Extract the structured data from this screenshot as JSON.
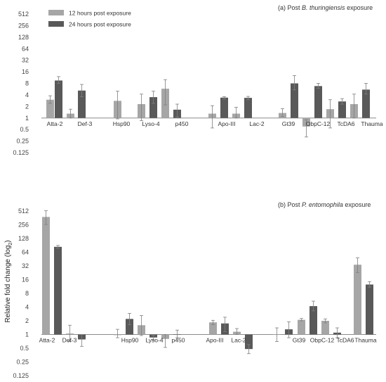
{
  "colors": {
    "series_12h": "#a6a6a6",
    "series_24h": "#595959",
    "axis": "#8c8c8c",
    "errorbar": "#7f7f7f"
  },
  "ylabel": {
    "main": "Relative fold change (log",
    "sub": "2",
    "close": ")"
  },
  "legend": {
    "series_12h": "12 hours post exposure",
    "series_24h": "24 hours post exposure"
  },
  "chart_data": [
    {
      "type": "bar",
      "panel": "top",
      "title": {
        "prefix": "(a) Post ",
        "italic": "B. thuringiensis",
        "suffix": " exposure"
      },
      "yscale": "log2",
      "ylim": [
        0.125,
        512
      ],
      "ytick_labels": [
        "0.125",
        "0.25",
        "0.5",
        "1",
        "2",
        "4",
        "8",
        "16",
        "32",
        "64",
        "128",
        "256",
        "512"
      ],
      "ylabel": "",
      "xlabel": "",
      "categories": [
        "Atta-2",
        "Def-3",
        "Hsp90",
        "Lyso-4",
        "p450",
        "Apo-III",
        "Lac-2",
        "Gt39",
        "ObpC-12",
        "TcDA6",
        "Thauma"
      ],
      "series": [
        {
          "name": "12 hours post exposure",
          "values": [
            3.0,
            1.3,
            2.8,
            2.3,
            5.8,
            1.3,
            1.3,
            1.35,
            0.6,
            1.7,
            2.3
          ],
          "err_low": [
            2.4,
            1.0,
            0.95,
            0.85,
            2.2,
            0.55,
            1.0,
            1.1,
            0.32,
            0.55,
            1.0
          ],
          "err_high": [
            3.8,
            1.7,
            5.0,
            4.2,
            10.0,
            2.1,
            1.9,
            1.75,
            0.9,
            3.0,
            4.2
          ]
        },
        {
          "name": "24 hours post exposure",
          "values": [
            9.5,
            5.2,
            null,
            3.5,
            1.65,
            3.4,
            3.35,
            8.0,
            6.8,
            2.7,
            5.5
          ],
          "err_low": [
            8.0,
            3.6,
            null,
            2.4,
            1.05,
            3.1,
            3.0,
            5.4,
            6.0,
            2.3,
            4.2
          ],
          "err_high": [
            12.0,
            7.5,
            null,
            5.0,
            2.3,
            3.6,
            3.65,
            12.8,
            8.0,
            3.2,
            8.0
          ]
        }
      ],
      "legend_position": "top-left",
      "grid": false
    },
    {
      "type": "bar",
      "panel": "bottom",
      "title": {
        "prefix": "(b) Post ",
        "italic": "P. entomophila",
        "suffix": " exposure"
      },
      "yscale": "log2",
      "ylim": [
        0.125,
        512
      ],
      "ytick_labels": [
        "0.125",
        "0.25",
        "0.5",
        "1",
        "2",
        "4",
        "8",
        "16",
        "32",
        "64",
        "128",
        "256",
        "512"
      ],
      "ylabel": "Relative fold change (log2)",
      "xlabel": "",
      "categories": [
        "Atta-2",
        "Def-3",
        "Hsp90",
        "Lyso-4",
        "p450",
        "Apo-III",
        "Lac-2",
        "Gt39",
        "ObpC-12",
        "TcDA6",
        "Thauma"
      ],
      "series": [
        {
          "name": "12 hours post exposure",
          "values": [
            380,
            1.05,
            0.97,
            1.6,
            0.8,
            1.85,
            1.15,
            1.0,
            2.1,
            2.0,
            34
          ],
          "err_low": [
            260,
            0.7,
            0.85,
            0.95,
            0.52,
            1.65,
            1.0,
            0.7,
            2.0,
            1.8,
            23
          ],
          "err_high": [
            520,
            1.6,
            1.3,
            2.6,
            1.0,
            2.05,
            1.35,
            1.4,
            2.25,
            2.2,
            48
          ]
        },
        {
          "name": "24 hours post exposure",
          "values": [
            84,
            0.78,
            2.2,
            0.86,
            1.0,
            1.75,
            0.48,
            1.3,
            4.2,
            1.1,
            12.5
          ],
          "err_low": [
            78,
            0.55,
            1.65,
            0.76,
            0.85,
            1.15,
            0.38,
            0.85,
            3.3,
            0.85,
            11.0
          ],
          "err_high": [
            90,
            1.0,
            2.9,
            0.96,
            1.25,
            2.4,
            0.6,
            1.9,
            5.4,
            1.4,
            14.5
          ]
        }
      ],
      "grid": false
    }
  ]
}
